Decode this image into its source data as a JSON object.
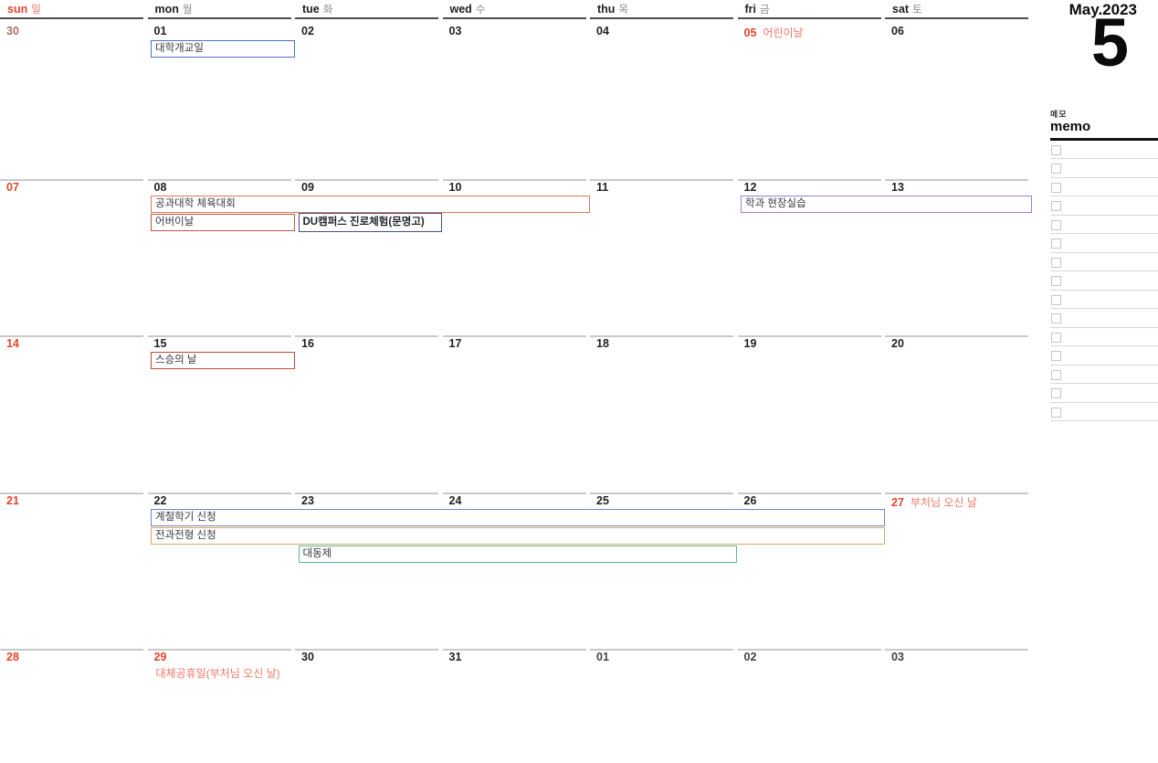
{
  "calendar": {
    "month_label": "May.2023",
    "month_number": "5",
    "day_headers": [
      {
        "abbr": "sun",
        "ko": "일"
      },
      {
        "abbr": "mon",
        "ko": "월"
      },
      {
        "abbr": "tue",
        "ko": "화"
      },
      {
        "abbr": "wed",
        "ko": "수"
      },
      {
        "abbr": "thu",
        "ko": "목"
      },
      {
        "abbr": "fri",
        "ko": "금"
      },
      {
        "abbr": "sat",
        "ko": "토"
      }
    ],
    "weeks": [
      {
        "days": [
          {
            "num": "30",
            "variant": "muted-red"
          },
          {
            "num": "01",
            "variant": "dark"
          },
          {
            "num": "02",
            "variant": "dark"
          },
          {
            "num": "03",
            "variant": "dark"
          },
          {
            "num": "04",
            "variant": "dark"
          },
          {
            "num": "05",
            "variant": "red",
            "holiday": "어린이날"
          },
          {
            "num": "06",
            "variant": "dark"
          }
        ],
        "events": [
          {
            "label": "대학개교일",
            "col": 1,
            "span": 1,
            "slot": 0,
            "color": "#4a72c4"
          }
        ]
      },
      {
        "days": [
          {
            "num": "07",
            "variant": "red"
          },
          {
            "num": "08",
            "variant": "dark"
          },
          {
            "num": "09",
            "variant": "dark"
          },
          {
            "num": "10",
            "variant": "dark"
          },
          {
            "num": "11",
            "variant": "dark"
          },
          {
            "num": "12",
            "variant": "dark"
          },
          {
            "num": "13",
            "variant": "dark"
          }
        ],
        "events": [
          {
            "label": "공과대학 체육대회",
            "col": 1,
            "span": 3,
            "slot": 0,
            "color": "#d97c52"
          },
          {
            "label": "어버이날",
            "col": 1,
            "span": 1,
            "slot": 1,
            "color": "#c4524b"
          },
          {
            "label": "DU캠퍼스 진로체험(문명고)",
            "col": 2,
            "span": 1,
            "slot": 1,
            "color": "#3f4f94",
            "bold": true
          },
          {
            "label": "학과 현장실습",
            "col": 5,
            "span": 2,
            "slot": 0,
            "color": "#a07cd8"
          }
        ]
      },
      {
        "days": [
          {
            "num": "14",
            "variant": "red"
          },
          {
            "num": "15",
            "variant": "dark"
          },
          {
            "num": "16",
            "variant": "dark"
          },
          {
            "num": "17",
            "variant": "dark"
          },
          {
            "num": "18",
            "variant": "dark"
          },
          {
            "num": "19",
            "variant": "dark"
          },
          {
            "num": "20",
            "variant": "dark"
          }
        ],
        "events": [
          {
            "label": "스승의 날",
            "col": 1,
            "span": 1,
            "slot": 0,
            "color": "#c9443c"
          }
        ]
      },
      {
        "days": [
          {
            "num": "21",
            "variant": "red"
          },
          {
            "num": "22",
            "variant": "dark"
          },
          {
            "num": "23",
            "variant": "dark"
          },
          {
            "num": "24",
            "variant": "dark"
          },
          {
            "num": "25",
            "variant": "dark"
          },
          {
            "num": "26",
            "variant": "dark"
          },
          {
            "num": "27",
            "variant": "red",
            "holiday": "부처님 오신 날"
          }
        ],
        "events": [
          {
            "label": "계절학기 신청",
            "col": 1,
            "span": 5,
            "slot": 0,
            "color": "#6e86c8"
          },
          {
            "label": "전과전형 신청",
            "col": 1,
            "span": 5,
            "slot": 1,
            "color": "#d5ab61"
          },
          {
            "label": "대동제",
            "col": 2,
            "span": 3,
            "slot": 2,
            "color": "#57b89b"
          }
        ]
      },
      {
        "days": [
          {
            "num": "28",
            "variant": "red"
          },
          {
            "num": "29",
            "variant": "red",
            "holiday": "대체공휴일(부처님 오신 날)",
            "holiday_position": "below"
          },
          {
            "num": "30",
            "variant": "dark"
          },
          {
            "num": "31",
            "variant": "dark"
          },
          {
            "num": "01",
            "variant": "gray"
          },
          {
            "num": "02",
            "variant": "gray"
          },
          {
            "num": "03",
            "variant": "gray"
          }
        ],
        "events": []
      }
    ]
  },
  "memo": {
    "label_ko": "메모",
    "label_en": "memo",
    "rows": 15
  },
  "colors": {
    "red": "#e8432c",
    "light_red": "#ef7668",
    "muted_red": "#a96e66",
    "dark": "#1f1f1f",
    "gray": "#3e4348"
  }
}
